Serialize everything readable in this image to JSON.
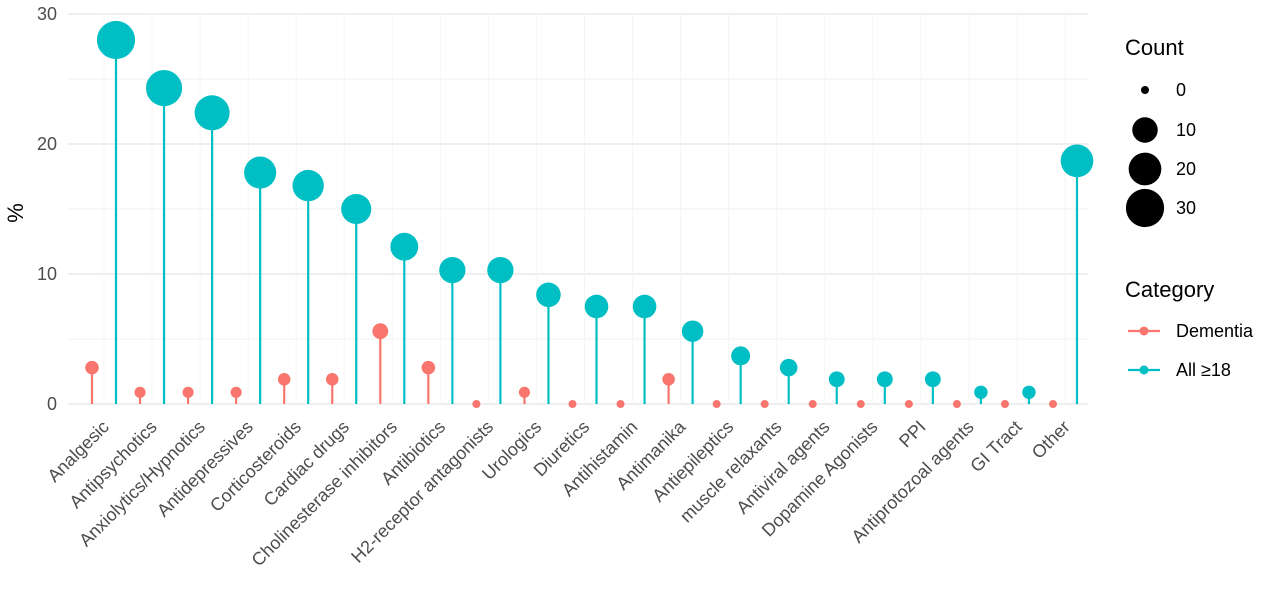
{
  "chart_data": {
    "type": "lollipop",
    "ylabel": "%",
    "xlabel": "",
    "ylim": [
      0,
      30
    ],
    "yticks": [
      0,
      10,
      20,
      30
    ],
    "grid": true,
    "categories": [
      "Analgesic",
      "Antipsychotics",
      "Anxiolytics/Hypnotics",
      "Antidepressives",
      "Corticosteroids",
      "Cardiac drugs",
      "Cholinesterase inhibitors",
      "Antibiotics",
      "H2-receptor antagonists",
      "Urologics",
      "Diuretics",
      "Antihistamin",
      "Antimanika",
      "Antiepileptics",
      "muscle relaxants",
      "Antiviral agents",
      "Dopamine Agonists",
      "PPI",
      "Antiprotozoal agents",
      "GI Tract",
      "Other"
    ],
    "series": [
      {
        "name": "Dementia",
        "color": "#F8766D",
        "values": [
          2.8,
          0.9,
          0.9,
          0.9,
          1.9,
          1.9,
          5.6,
          2.8,
          0,
          0.9,
          0,
          0,
          1.9,
          0,
          0,
          0,
          0,
          0,
          0,
          0,
          0
        ]
      },
      {
        "name": "All ≥18",
        "color": "#00BFC4",
        "values": [
          28.0,
          24.3,
          22.4,
          17.8,
          16.8,
          15.0,
          12.1,
          10.3,
          10.3,
          8.4,
          7.5,
          7.5,
          5.6,
          3.7,
          2.8,
          1.9,
          1.9,
          1.9,
          0.9,
          0.9,
          18.7
        ]
      }
    ],
    "size_legend": {
      "title": "Count",
      "values": [
        0,
        10,
        20,
        30
      ]
    },
    "color_legend": {
      "title": "Category"
    }
  }
}
